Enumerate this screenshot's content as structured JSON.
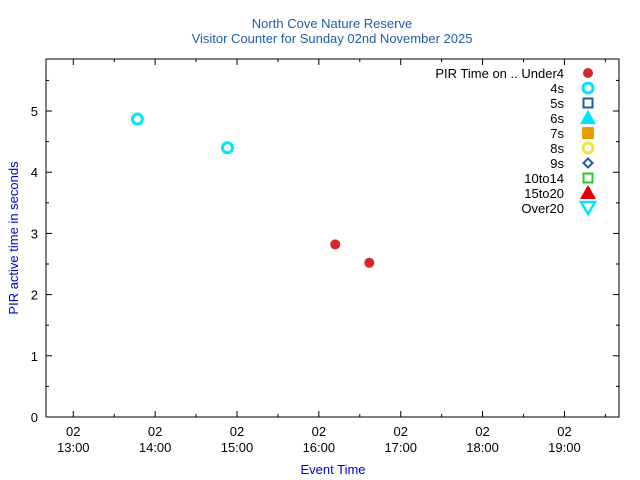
{
  "chart_data": {
    "type": "scatter",
    "title": "North Cove Nature Reserve",
    "subtitle": "Visitor Counter for Sunday 02nd November 2025",
    "xlabel": "Event Time",
    "ylabel": "PIR active time in seconds",
    "xlim": [
      "12:40",
      "19:40"
    ],
    "ylim": [
      0,
      5.85
    ],
    "x_ticks": [
      {
        "x": "13:00",
        "label_top": "02",
        "label_bottom": "13:00"
      },
      {
        "x": "14:00",
        "label_top": "02",
        "label_bottom": "14:00"
      },
      {
        "x": "15:00",
        "label_top": "02",
        "label_bottom": "15:00"
      },
      {
        "x": "16:00",
        "label_top": "02",
        "label_bottom": "16:00"
      },
      {
        "x": "17:00",
        "label_top": "02",
        "label_bottom": "17:00"
      },
      {
        "x": "18:00",
        "label_top": "02",
        "label_bottom": "18:00"
      },
      {
        "x": "19:00",
        "label_top": "02",
        "label_bottom": "19:00"
      }
    ],
    "y_ticks": [
      "0",
      "1",
      "2",
      "3",
      "4",
      "5"
    ],
    "grid": false,
    "legend_position": "top-right",
    "legend_title": "PIR Time on ..",
    "series": [
      {
        "name": "Under4",
        "marker": "filled-circle",
        "color": "#d62728",
        "points": [
          {
            "x": "16:12",
            "y": 2.82
          },
          {
            "x": "16:37",
            "y": 2.52
          }
        ]
      },
      {
        "name": "4s",
        "marker": "open-circle",
        "color": "#00e5ff",
        "points": [
          {
            "x": "13:47",
            "y": 4.87
          },
          {
            "x": "14:53",
            "y": 4.4
          }
        ]
      },
      {
        "name": "5s",
        "marker": "open-square",
        "color": "#1f5fa6",
        "points": []
      },
      {
        "name": "6s",
        "marker": "filled-triangle-up",
        "color": "#00e5ff",
        "points": []
      },
      {
        "name": "7s",
        "marker": "filled-square",
        "color": "#e69f00",
        "points": []
      },
      {
        "name": "8s",
        "marker": "open-circle",
        "color": "#f0e442",
        "points": []
      },
      {
        "name": "9s",
        "marker": "open-diamond",
        "color": "#1f5fa6",
        "points": []
      },
      {
        "name": "10to14",
        "marker": "open-square",
        "color": "#22cc22",
        "points": []
      },
      {
        "name": "15to20",
        "marker": "filled-triangle-up",
        "color": "#dd0000",
        "points": []
      },
      {
        "name": "Over20",
        "marker": "open-triangle-down",
        "color": "#00e5ff",
        "points": []
      }
    ]
  }
}
